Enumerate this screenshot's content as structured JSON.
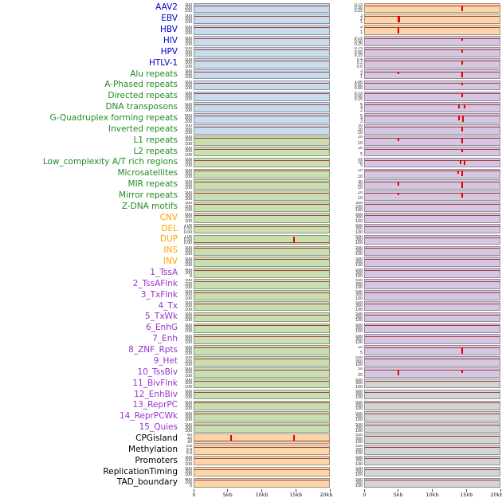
{
  "label_colors": {
    "virus": "#0000CC",
    "repeat": "#228B22",
    "sv": "#FFA500",
    "chromatin": "#9932CC",
    "other": "#000000"
  },
  "band_colors": {
    "blue": "#c9dcee",
    "green": "#c9dfb1",
    "orange": "#fbd6a9",
    "purple": "#d5c7e2",
    "gray": "#d4d4d4"
  },
  "line_color": "#a04040",
  "spike_color": "#e60000",
  "chart_data": {
    "type": "line",
    "description_title": "",
    "default_baseline": 0.18,
    "x_ticks": [
      {
        "label": "0",
        "pos": 0
      },
      {
        "label": "5kb",
        "pos": 0.25
      },
      {
        "label": "10kb",
        "pos": 0.5
      },
      {
        "label": "15kb",
        "pos": 0.75
      },
      {
        "label": "20kb",
        "pos": 1
      }
    ],
    "rows": [
      {
        "label": "AAV2",
        "group": "virus",
        "lbg": "blue",
        "lticks": [
          "300",
          "200",
          "100"
        ],
        "lspikes": [],
        "rbg": "orange",
        "rticks": [
          "0.75",
          "0.50",
          "0.25"
        ],
        "rspikes": [
          {
            "x": 0.72,
            "h": 0.72
          }
        ]
      },
      {
        "label": "EBV",
        "group": "virus",
        "lbg": "blue",
        "lticks": [
          "500",
          "300",
          "100"
        ],
        "lspikes": [],
        "rbg": "orange",
        "rticks": [
          "3",
          "2",
          "1"
        ],
        "rspikes": [
          {
            "x": 0.25,
            "h": 0.72,
            "w": 3
          }
        ]
      },
      {
        "label": "HBV",
        "group": "virus",
        "lbg": "blue",
        "lticks": [
          "500",
          "300",
          "100"
        ],
        "lspikes": [],
        "rbg": "orange",
        "rticks": [
          "2",
          "1"
        ],
        "rspikes": [
          {
            "x": 0.25,
            "h": 0.72
          }
        ]
      },
      {
        "label": "HIV",
        "group": "virus",
        "lbg": "blue",
        "lticks": [
          "500",
          "300",
          "100"
        ],
        "lspikes": [],
        "rbg": "purple",
        "rticks": [
          "0.75",
          "0.50",
          "0.25"
        ],
        "rspikes": [
          {
            "x": 0.72,
            "h": 0.25
          }
        ]
      },
      {
        "label": "HPV",
        "group": "virus",
        "lbg": "blue",
        "lticks": [
          "500",
          "300",
          "100"
        ],
        "lspikes": [],
        "rbg": "purple",
        "rticks": [
          "0.75",
          "0.50",
          "0.25"
        ],
        "rspikes": [
          {
            "x": 0.72,
            "h": 0.35
          }
        ]
      },
      {
        "label": "HTLV-1",
        "group": "virus",
        "lbg": "blue",
        "lticks": [
          "500",
          "300",
          "100"
        ],
        "lspikes": [],
        "rbg": "purple",
        "rticks": [
          "0.4",
          "0.2",
          "0.0"
        ],
        "rspikes": [
          {
            "x": 0.72,
            "h": 0.45
          }
        ]
      },
      {
        "label": "Alu repeats",
        "group": "repeat",
        "lbg": "blue",
        "lticks": [
          "500",
          "300",
          "100"
        ],
        "lspikes": [],
        "rbg": "purple",
        "rticks": [
          "3",
          "2",
          "1"
        ],
        "rspikes": [
          {
            "x": 0.25,
            "h": 0.35
          },
          {
            "x": 0.72,
            "h": 0.7
          }
        ]
      },
      {
        "label": "A-Phased repeats",
        "group": "repeat",
        "lbg": "blue",
        "lticks": [
          "500",
          "300",
          "100"
        ],
        "lspikes": [],
        "rbg": "purple",
        "rticks": [
          "1.00",
          "0.50",
          "0.00"
        ],
        "rspikes": [
          {
            "x": 0.72,
            "h": 0.3
          }
        ]
      },
      {
        "label": "Directed repeats",
        "group": "repeat",
        "lbg": "blue",
        "lticks": [
          "500",
          "300",
          "100"
        ],
        "lspikes": [],
        "rbg": "purple",
        "rticks": [
          "0.75",
          "0.50",
          "0.25"
        ],
        "rspikes": [
          {
            "x": 0.72,
            "h": 0.45
          }
        ]
      },
      {
        "label": "DNA transposons",
        "group": "repeat",
        "lbg": "blue",
        "lticks": [
          "500",
          "300",
          "100"
        ],
        "lspikes": [],
        "rbg": "purple",
        "rticks": [
          "6",
          "4",
          "2"
        ],
        "rspikes": [
          {
            "x": 0.7,
            "h": 0.45
          },
          {
            "x": 0.74,
            "h": 0.4
          }
        ]
      },
      {
        "label": "G-Quadruplex forming repeats",
        "group": "repeat",
        "lbg": "blue",
        "lticks": [
          "600",
          "400",
          "200"
        ],
        "lspikes": [],
        "rbg": "purple",
        "rticks": [
          "6",
          "4",
          "2"
        ],
        "rspikes": [
          {
            "x": 0.7,
            "h": 0.6
          },
          {
            "x": 0.73,
            "h": 0.72
          }
        ]
      },
      {
        "label": "Inverted repeats",
        "group": "repeat",
        "lbg": "blue",
        "lticks": [
          "500",
          "300",
          "100"
        ],
        "lspikes": [],
        "rbg": "purple",
        "rticks": [
          "30",
          "20",
          "10"
        ],
        "rspikes": [
          {
            "x": 0.72,
            "h": 0.6
          }
        ]
      },
      {
        "label": "L1 repeats",
        "group": "repeat",
        "lbg": "green",
        "lticks": [
          "500",
          "300",
          "100"
        ],
        "lspikes": [],
        "rbg": "purple",
        "rticks": [
          "20",
          "10"
        ],
        "rspikes": [
          {
            "x": 0.25,
            "h": 0.4
          },
          {
            "x": 0.72,
            "h": 0.7
          }
        ]
      },
      {
        "label": "L2 repeats",
        "group": "repeat",
        "lbg": "green",
        "lticks": [
          "500",
          "300",
          "100"
        ],
        "lspikes": [],
        "rbg": "purple",
        "rticks": [
          "10",
          "5"
        ],
        "rspikes": [
          {
            "x": 0.72,
            "h": 0.45
          }
        ]
      },
      {
        "label": "Low_complexity A/T rich regions",
        "group": "repeat",
        "lbg": "green",
        "lticks": [
          "500",
          "300",
          "100"
        ],
        "lspikes": [],
        "rbg": "purple",
        "rticks": [
          "15",
          "10",
          "5"
        ],
        "rspikes": [
          {
            "x": 0.71,
            "h": 0.5
          },
          {
            "x": 0.74,
            "h": 0.65
          }
        ]
      },
      {
        "label": "Microsatellites",
        "group": "repeat",
        "lbg": "green",
        "lticks": [
          "500",
          "300",
          "100"
        ],
        "lspikes": [],
        "rbg": "purple",
        "rticks": [
          "20",
          "10"
        ],
        "rspikes": [
          {
            "x": 0.69,
            "h": 0.35
          },
          {
            "x": 0.72,
            "h": 0.6
          }
        ]
      },
      {
        "label": "MIR repeats",
        "group": "repeat",
        "lbg": "green",
        "lticks": [
          "500",
          "300",
          "100"
        ],
        "lspikes": [],
        "rbg": "purple",
        "rticks": [
          "30",
          "20",
          "10"
        ],
        "rspikes": [
          {
            "x": 0.25,
            "h": 0.45
          },
          {
            "x": 0.72,
            "h": 0.7
          }
        ]
      },
      {
        "label": "Mirror repeats",
        "group": "repeat",
        "lbg": "green",
        "lticks": [
          "500",
          "300",
          "100"
        ],
        "lspikes": [],
        "rbg": "purple",
        "rticks": [
          "20",
          "10"
        ],
        "rspikes": [
          {
            "x": 0.25,
            "h": 0.3
          },
          {
            "x": 0.72,
            "h": 0.55
          }
        ]
      },
      {
        "label": "Z-DNA motifs",
        "group": "repeat",
        "lbg": "green",
        "lticks": [
          "300",
          "200",
          "100"
        ],
        "lspikes": [],
        "rbg": "purple",
        "rticks": [
          "300",
          "200",
          "100"
        ],
        "rspikes": []
      },
      {
        "label": "CNV",
        "group": "sv",
        "lbg": "green",
        "lticks": [
          "500",
          "300",
          "100"
        ],
        "lspikes": [],
        "rbg": "purple",
        "rticks": [
          "500",
          "300",
          "100"
        ],
        "rspikes": []
      },
      {
        "label": "DEL",
        "group": "sv",
        "lbg": "green",
        "lticks": [
          "1.00",
          "0.50",
          "0.00"
        ],
        "lspikes": [],
        "rbg": "purple",
        "rticks": [
          "500",
          "300",
          "100"
        ],
        "rspikes": []
      },
      {
        "label": "DUP",
        "group": "sv",
        "lbg": "green",
        "lticks": [
          "1.00",
          "0.50",
          "0.00"
        ],
        "lbase": 0.75,
        "ldir": "up",
        "lspikes": [
          {
            "x": 0.74,
            "h": 0.67
          }
        ],
        "rbg": "purple",
        "rticks": [
          "500",
          "300",
          "100"
        ],
        "rspikes": []
      },
      {
        "label": "INS",
        "group": "sv",
        "lbg": "green",
        "lticks": [
          "500",
          "300",
          "100"
        ],
        "lspikes": [],
        "rbg": "purple",
        "rticks": [
          "500",
          "300",
          "100"
        ],
        "rspikes": []
      },
      {
        "label": "INV",
        "group": "sv",
        "lbg": "green",
        "lticks": [
          "500",
          "300",
          "100"
        ],
        "lspikes": [],
        "rbg": "purple",
        "rticks": [
          "500",
          "300",
          "100"
        ],
        "rspikes": []
      },
      {
        "label": "1_TssA",
        "group": "chromatin",
        "lbg": "green",
        "lticks": [
          "400",
          "200",
          "0"
        ],
        "lspikes": [],
        "rbg": "purple",
        "rticks": [
          "500",
          "300",
          "100"
        ],
        "rspikes": []
      },
      {
        "label": "2_TssAFlnk",
        "group": "chromatin",
        "lbg": "green",
        "lticks": [
          "300",
          "200",
          "100"
        ],
        "lspikes": [],
        "rbg": "purple",
        "rticks": [
          "500",
          "300",
          "100"
        ],
        "rspikes": []
      },
      {
        "label": "3_TxFlnk",
        "group": "chromatin",
        "lbg": "green",
        "lticks": [
          "500",
          "300",
          "100"
        ],
        "lspikes": [],
        "rbg": "purple",
        "rticks": [
          "500",
          "300",
          "100"
        ],
        "rspikes": []
      },
      {
        "label": "4_Tx",
        "group": "chromatin",
        "lbg": "green",
        "lticks": [
          "500",
          "300",
          "100"
        ],
        "lspikes": [],
        "rbg": "purple",
        "rticks": [
          "500",
          "300",
          "100"
        ],
        "rspikes": []
      },
      {
        "label": "5_TxWk",
        "group": "chromatin",
        "lbg": "green",
        "lticks": [
          "500",
          "300",
          "100"
        ],
        "lspikes": [],
        "rbg": "purple",
        "rticks": [
          "500",
          "300",
          "100"
        ],
        "rspikes": []
      },
      {
        "label": "6_EnhG",
        "group": "chromatin",
        "lbg": "green",
        "lticks": [
          "500",
          "300",
          "100"
        ],
        "lspikes": [],
        "rbg": "purple",
        "rticks": [
          "500",
          "300",
          "100"
        ],
        "rspikes": []
      },
      {
        "label": "7_Enh",
        "group": "chromatin",
        "lbg": "green",
        "lticks": [
          "500",
          "300",
          "100"
        ],
        "lspikes": [],
        "rbg": "purple",
        "rticks": [
          "500",
          "300",
          "100"
        ],
        "rspikes": []
      },
      {
        "label": "8_ZNF_Rpts",
        "group": "chromatin",
        "lbg": "green",
        "lticks": [
          "500",
          "300",
          "100"
        ],
        "lspikes": [],
        "rbg": "purple",
        "rticks": [
          "10",
          "5"
        ],
        "rspikes": [
          {
            "x": 0.72,
            "h": 0.7
          }
        ]
      },
      {
        "label": "9_Het",
        "group": "chromatin",
        "lbg": "green",
        "lticks": [
          "300",
          "200",
          "100"
        ],
        "lspikes": [],
        "rbg": "purple",
        "rticks": [
          "500",
          "300",
          "100"
        ],
        "rspikes": []
      },
      {
        "label": "10_TssBiv",
        "group": "chromatin",
        "lbg": "green",
        "lticks": [
          "500",
          "300",
          "100"
        ],
        "lspikes": [],
        "rbg": "purple",
        "rticks": [
          "50",
          "25"
        ],
        "rspikes": [
          {
            "x": 0.25,
            "h": 0.7
          },
          {
            "x": 0.72,
            "h": 0.4
          }
        ]
      },
      {
        "label": "11_BivFlnk",
        "group": "chromatin",
        "lbg": "green",
        "lticks": [
          "500",
          "300",
          "100"
        ],
        "lspikes": [],
        "rbg": "gray",
        "rticks": [
          "500",
          "300",
          "100"
        ],
        "rspikes": []
      },
      {
        "label": "12_EnhBiv",
        "group": "chromatin",
        "lbg": "green",
        "lticks": [
          "500",
          "300",
          "100"
        ],
        "lspikes": [],
        "rbg": "gray",
        "rticks": [
          "500",
          "300",
          "100"
        ],
        "rspikes": []
      },
      {
        "label": "13_ReprPC",
        "group": "chromatin",
        "lbg": "green",
        "lticks": [
          "500",
          "300",
          "100"
        ],
        "lspikes": [],
        "rbg": "gray",
        "rticks": [
          "500",
          "300",
          "100"
        ],
        "rspikes": []
      },
      {
        "label": "14_ReprPCWk",
        "group": "chromatin",
        "lbg": "green",
        "lticks": [
          "500",
          "300",
          "100"
        ],
        "lspikes": [],
        "rbg": "gray",
        "rticks": [
          "500",
          "300",
          "100"
        ],
        "rspikes": []
      },
      {
        "label": "15_Quies",
        "group": "chromatin",
        "lbg": "green",
        "lticks": [
          "500",
          "300",
          "100"
        ],
        "lspikes": [],
        "rbg": "gray",
        "rticks": [
          "500",
          "300",
          "100"
        ],
        "rspikes": []
      },
      {
        "label": "CPGisland",
        "group": "other",
        "lbg": "orange",
        "lticks": [
          "60",
          "40",
          "20"
        ],
        "lbase": 0.75,
        "ldir": "up",
        "lspikes": [
          {
            "x": 0.27,
            "h": 0.67
          },
          {
            "x": 0.74,
            "h": 0.67
          }
        ],
        "rbg": "gray",
        "rticks": [
          "500",
          "300",
          "100"
        ],
        "rspikes": []
      },
      {
        "label": "Methylation",
        "group": "other",
        "lbg": "orange",
        "lticks": [
          "0.8",
          "0.4",
          "0.0"
        ],
        "lspikes": [],
        "rbg": "gray",
        "rticks": [
          "500",
          "300",
          "100"
        ],
        "rspikes": []
      },
      {
        "label": "Promoters",
        "group": "other",
        "lbg": "orange",
        "lticks": [
          "300",
          "200",
          "100"
        ],
        "lspikes": [],
        "rbg": "gray",
        "rticks": [
          "500",
          "300",
          "100"
        ],
        "rspikes": []
      },
      {
        "label": "ReplicationTiming",
        "group": "other",
        "lbg": "orange",
        "lticks": [
          "500",
          "300",
          "100"
        ],
        "lspikes": [],
        "rbg": "gray",
        "rticks": [
          "500",
          "300",
          "100"
        ],
        "rspikes": []
      },
      {
        "label": "TAD_boundary",
        "group": "other",
        "lbg": "orange",
        "lticks": [
          "400",
          "200",
          "0"
        ],
        "lspikes": [],
        "rbg": "gray",
        "rticks": [
          "500",
          "300",
          "100"
        ],
        "rspikes": []
      }
    ]
  }
}
